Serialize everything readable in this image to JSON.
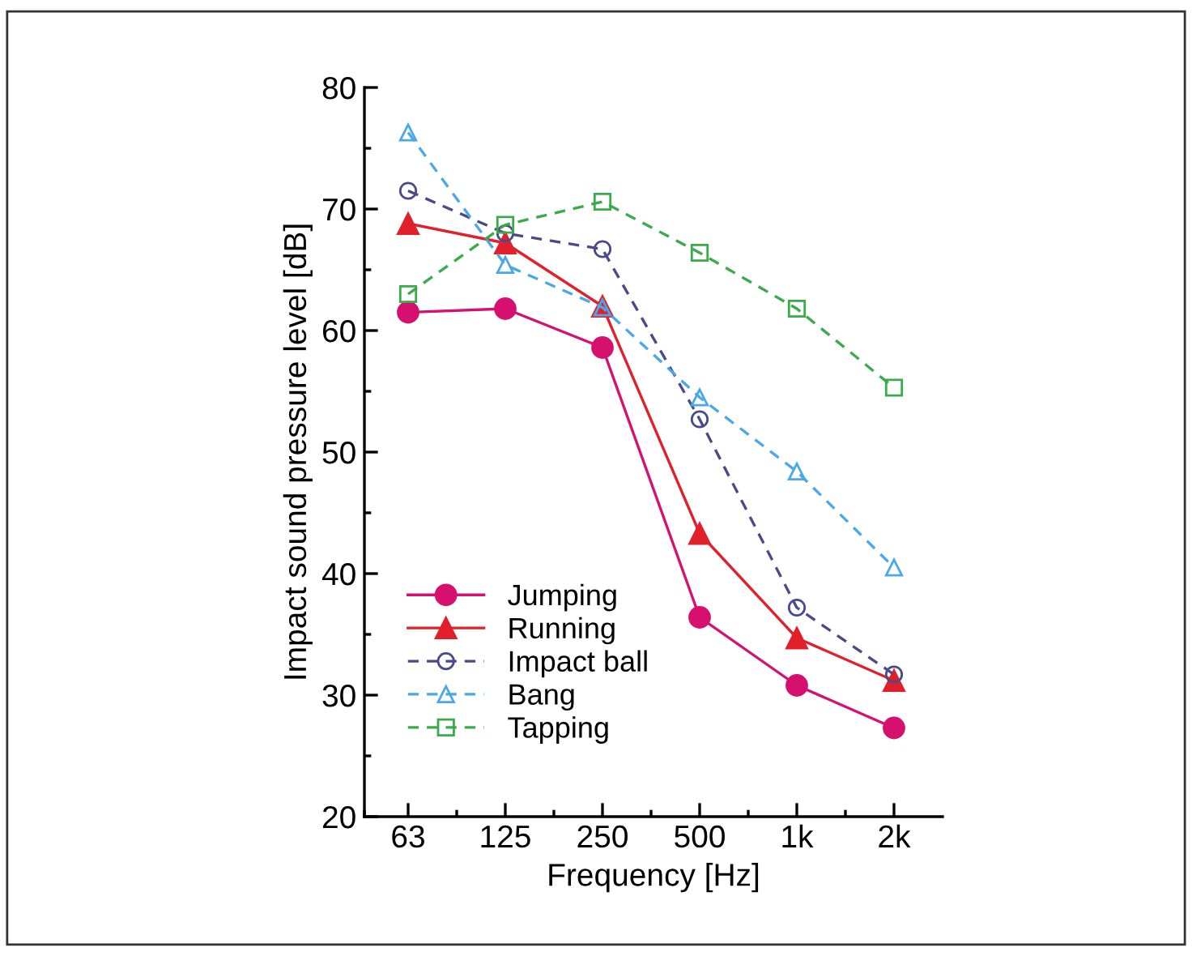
{
  "chart_data": {
    "type": "line",
    "xlabel": "Frequency [Hz]",
    "ylabel": "Impact sound pressure level [dB]",
    "categories": [
      "63",
      "125",
      "250",
      "500",
      "1k",
      "2k"
    ],
    "ylim": [
      20,
      80
    ],
    "yticks": [
      20,
      30,
      40,
      50,
      60,
      70,
      80
    ],
    "grid": false,
    "legend": "bottom left",
    "series": [
      {
        "name": "Jumping",
        "color": "#d6106e",
        "marker": "circle",
        "line_style": "solid",
        "values": [
          61.5,
          61.8,
          58.6,
          36.4,
          30.8,
          27.3
        ]
      },
      {
        "name": "Running",
        "color": "#e0202a",
        "marker": "triangle",
        "line_style": "solid",
        "values": [
          68.8,
          67.2,
          62.0,
          43.3,
          34.7,
          31.2
        ]
      },
      {
        "name": "Impact ball",
        "color": "#4a4a8a",
        "marker": "circle",
        "line_style": "dashed",
        "values": [
          71.5,
          68.0,
          66.7,
          52.7,
          37.2,
          31.7
        ]
      },
      {
        "name": "Bang",
        "color": "#4aa8e8",
        "marker": "triangle",
        "line_style": "dashed",
        "values": [
          76.3,
          65.4,
          61.9,
          54.5,
          48.4,
          40.5
        ]
      },
      {
        "name": "Tapping",
        "color": "#3aaa4a",
        "marker": "square",
        "line_style": "dashed",
        "values": [
          63.0,
          68.7,
          70.6,
          66.4,
          61.8,
          55.3
        ]
      }
    ]
  }
}
